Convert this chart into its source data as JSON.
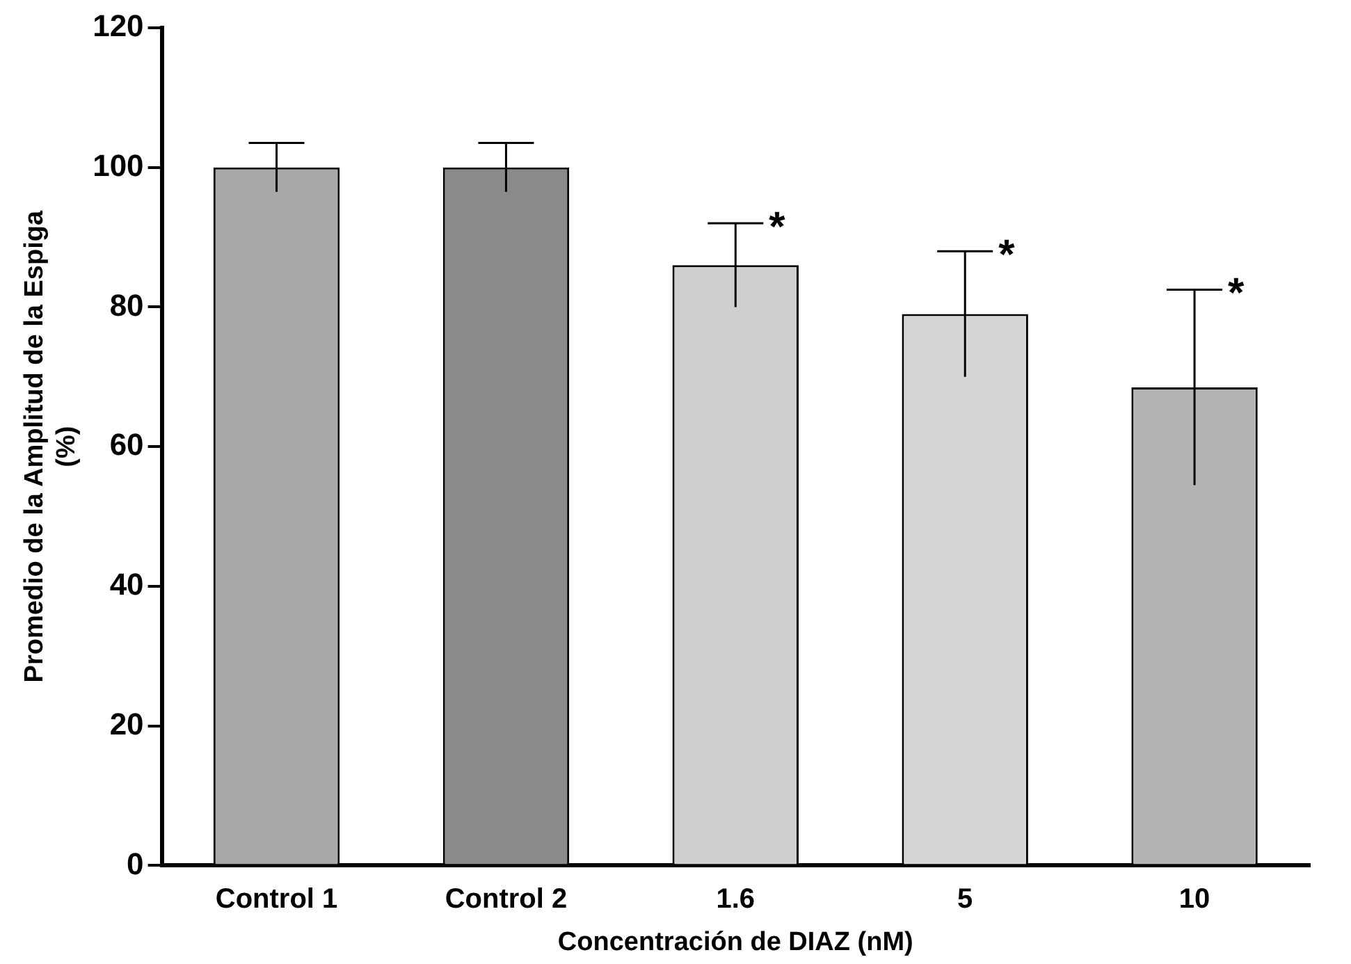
{
  "chart_data": {
    "type": "bar",
    "xlabel": "Concentración de DIAZ (nM)",
    "ylabel": "Promedio de la Amplitud de la Espiga (%)",
    "categories": [
      "Control 1",
      "Control 2",
      "1.6",
      "5",
      "10"
    ],
    "values": [
      100,
      100,
      86,
      79,
      68.5
    ],
    "colors": [
      "#a8a8a8",
      "#8a8a8a",
      "#cfcfcf",
      "#d6d6d6",
      "#b4b4b4"
    ],
    "errors": [
      3.5,
      3.5,
      6,
      9,
      14
    ],
    "ylim": [
      0,
      120
    ],
    "yticks": [
      0,
      20,
      40,
      60,
      80,
      100,
      120
    ],
    "grid": false,
    "legend": false,
    "annotations": [
      {
        "text": "*",
        "x": "1.6",
        "y": 92
      },
      {
        "text": "*",
        "x": "5",
        "y": 88
      },
      {
        "text": "*",
        "x": "10",
        "y": 82.5
      }
    ]
  }
}
